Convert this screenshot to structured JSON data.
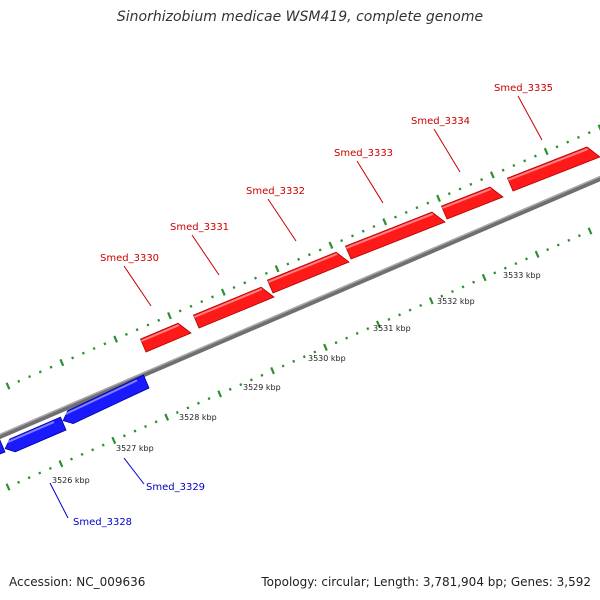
{
  "title": "Sinorhizobium medicae WSM419, complete genome",
  "footer": {
    "accession": "Accession: NC_009636",
    "summary": "Topology: circular; Length: 3,781,904 bp; Genes: 3,592"
  },
  "colors": {
    "forward_gene": "#ff1a1a",
    "reverse_gene": "#1a1aff",
    "backbone": "#8a8a8a",
    "tick": "#2f8f2f",
    "forward_label": "#cc0000",
    "reverse_label": "#0000cc"
  },
  "scale_labels": [
    "3526 kbp",
    "3527 kbp",
    "3528 kbp",
    "3529 kbp",
    "3530 kbp",
    "3531 kbp",
    "3532 kbp",
    "3533 kbp"
  ],
  "genes": [
    {
      "name": "Smed_3328",
      "strand": "reverse"
    },
    {
      "name": "Smed_3329",
      "strand": "reverse"
    },
    {
      "name": "Smed_3330",
      "strand": "forward"
    },
    {
      "name": "Smed_3331",
      "strand": "forward"
    },
    {
      "name": "Smed_3332",
      "strand": "forward"
    },
    {
      "name": "Smed_3333",
      "strand": "forward"
    },
    {
      "name": "Smed_3334",
      "strand": "forward"
    },
    {
      "name": "Smed_3335",
      "strand": "forward"
    }
  ]
}
